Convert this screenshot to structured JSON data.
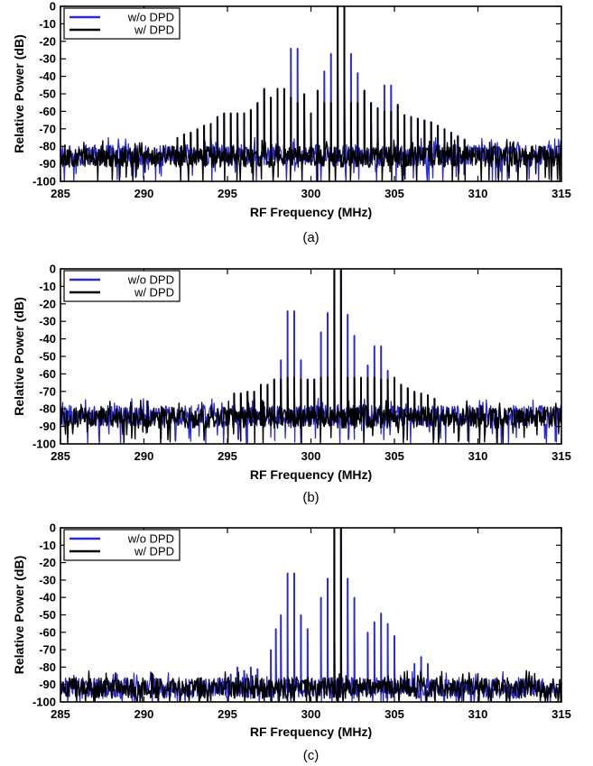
{
  "chart_data": [
    {
      "type": "line",
      "panel_label": "(a)",
      "xlabel": "RF Frequency (MHz)",
      "ylabel": "Relative Power (dB)",
      "xlim": [
        285,
        315
      ],
      "ylim": [
        -100,
        0
      ],
      "xticks": [
        285,
        290,
        295,
        300,
        305,
        310,
        315
      ],
      "yticks": [
        0,
        -10,
        -20,
        -30,
        -40,
        -50,
        -60,
        -70,
        -80,
        -90,
        -100
      ],
      "legend_position": "top-left",
      "colors": {
        "w/o DPD": "#2b2bd6",
        "w/ DPD": "#000000"
      },
      "series": [
        {
          "name": "w/o DPD",
          "noise_floor": -85,
          "tones": [
            [
              292.0,
              -75
            ],
            [
              292.4,
              -73
            ],
            [
              292.8,
              -72
            ],
            [
              293.2,
              -70
            ],
            [
              293.6,
              -68
            ],
            [
              294.0,
              -67
            ],
            [
              294.4,
              -63
            ],
            [
              294.8,
              -61
            ],
            [
              295.2,
              -61
            ],
            [
              295.6,
              -61
            ],
            [
              296.0,
              -61
            ],
            [
              296.4,
              -59
            ],
            [
              296.8,
              -55
            ],
            [
              297.2,
              -47
            ],
            [
              297.6,
              -52
            ],
            [
              298.0,
              -47
            ],
            [
              298.4,
              -47
            ],
            [
              298.8,
              -24
            ],
            [
              299.2,
              -24
            ],
            [
              299.6,
              -50
            ],
            [
              300.0,
              -61
            ],
            [
              300.4,
              -48
            ],
            [
              300.8,
              -37
            ],
            [
              301.2,
              -27
            ],
            [
              301.6,
              0
            ],
            [
              302.0,
              0
            ],
            [
              302.4,
              -27
            ],
            [
              302.8,
              -38
            ],
            [
              303.2,
              -48
            ],
            [
              303.6,
              -55
            ],
            [
              304.0,
              -58
            ],
            [
              304.4,
              -45
            ],
            [
              304.8,
              -45
            ],
            [
              305.2,
              -56
            ],
            [
              305.6,
              -62
            ],
            [
              306.0,
              -63
            ],
            [
              306.4,
              -64
            ],
            [
              306.8,
              -65
            ],
            [
              307.2,
              -66
            ],
            [
              307.6,
              -68
            ],
            [
              308.0,
              -70
            ],
            [
              308.4,
              -72
            ],
            [
              308.8,
              -74
            ],
            [
              309.2,
              -76
            ]
          ]
        },
        {
          "name": "w/ DPD",
          "noise_floor": -86,
          "tones": [
            [
              292.0,
              -75
            ],
            [
              292.4,
              -73
            ],
            [
              292.8,
              -72
            ],
            [
              293.2,
              -70
            ],
            [
              293.6,
              -68
            ],
            [
              294.0,
              -67
            ],
            [
              294.4,
              -63
            ],
            [
              294.8,
              -61
            ],
            [
              295.2,
              -61
            ],
            [
              295.6,
              -61
            ],
            [
              296.0,
              -61
            ],
            [
              296.4,
              -59
            ],
            [
              296.8,
              -55
            ],
            [
              297.2,
              -47
            ],
            [
              297.6,
              -52
            ],
            [
              298.0,
              -47
            ],
            [
              298.4,
              -47
            ],
            [
              298.8,
              -52
            ],
            [
              299.2,
              -55
            ],
            [
              299.6,
              -50
            ],
            [
              300.0,
              -61
            ],
            [
              300.4,
              -48
            ],
            [
              300.8,
              -55
            ],
            [
              301.2,
              -55
            ],
            [
              301.6,
              0
            ],
            [
              302.0,
              0
            ],
            [
              302.4,
              -55
            ],
            [
              302.8,
              -55
            ],
            [
              303.2,
              -48
            ],
            [
              303.6,
              -55
            ],
            [
              304.0,
              -58
            ],
            [
              304.4,
              -60
            ],
            [
              304.8,
              -60
            ],
            [
              305.2,
              -56
            ],
            [
              305.6,
              -62
            ],
            [
              306.0,
              -63
            ],
            [
              306.4,
              -64
            ],
            [
              306.8,
              -65
            ],
            [
              307.2,
              -66
            ],
            [
              307.6,
              -68
            ],
            [
              308.0,
              -70
            ],
            [
              308.4,
              -72
            ],
            [
              308.8,
              -74
            ],
            [
              309.2,
              -76
            ]
          ]
        }
      ]
    },
    {
      "type": "line",
      "panel_label": "(b)",
      "xlabel": "RF Frequency (MHz)",
      "ylabel": "Relative Power (dB)",
      "xlim": [
        285,
        315
      ],
      "ylim": [
        -100,
        0
      ],
      "xticks": [
        285,
        290,
        295,
        300,
        305,
        310,
        315
      ],
      "yticks": [
        0,
        -10,
        -20,
        -30,
        -40,
        -50,
        -60,
        -70,
        -80,
        -90,
        -100
      ],
      "legend_position": "top-left",
      "colors": {
        "w/o DPD": "#2b2bd6",
        "w/ DPD": "#000000"
      },
      "series": [
        {
          "name": "w/o DPD",
          "noise_floor": -84,
          "tones": [
            [
              295.4,
              -71
            ],
            [
              295.8,
              -71
            ],
            [
              296.2,
              -70
            ],
            [
              296.6,
              -70
            ],
            [
              297.0,
              -66
            ],
            [
              297.4,
              -66
            ],
            [
              297.8,
              -63
            ],
            [
              298.2,
              -52
            ],
            [
              298.6,
              -24
            ],
            [
              299.0,
              -24
            ],
            [
              299.4,
              -52
            ],
            [
              299.8,
              -63
            ],
            [
              300.2,
              -63
            ],
            [
              300.6,
              -36
            ],
            [
              301.0,
              -25
            ],
            [
              301.4,
              0
            ],
            [
              301.8,
              0
            ],
            [
              302.2,
              -26
            ],
            [
              302.6,
              -38
            ],
            [
              303.0,
              -62
            ],
            [
              303.4,
              -55
            ],
            [
              303.8,
              -44
            ],
            [
              304.2,
              -44
            ],
            [
              304.6,
              -58
            ],
            [
              305.0,
              -62
            ],
            [
              305.4,
              -66
            ],
            [
              305.8,
              -68
            ],
            [
              306.2,
              -70
            ],
            [
              306.6,
              -71
            ],
            [
              307.0,
              -72
            ],
            [
              307.4,
              -74
            ]
          ]
        },
        {
          "name": "w/ DPD",
          "noise_floor": -85,
          "tones": [
            [
              295.4,
              -71
            ],
            [
              295.8,
              -71
            ],
            [
              296.2,
              -70
            ],
            [
              296.6,
              -70
            ],
            [
              297.0,
              -66
            ],
            [
              297.4,
              -66
            ],
            [
              297.8,
              -63
            ],
            [
              298.2,
              -63
            ],
            [
              298.6,
              -62
            ],
            [
              299.0,
              -62
            ],
            [
              299.4,
              -63
            ],
            [
              299.8,
              -63
            ],
            [
              300.2,
              -63
            ],
            [
              300.6,
              -62
            ],
            [
              301.0,
              -62
            ],
            [
              301.4,
              0
            ],
            [
              301.8,
              0
            ],
            [
              302.2,
              -62
            ],
            [
              302.6,
              -62
            ],
            [
              303.0,
              -62
            ],
            [
              303.4,
              -62
            ],
            [
              303.8,
              -62
            ],
            [
              304.2,
              -63
            ],
            [
              304.6,
              -63
            ],
            [
              305.0,
              -62
            ],
            [
              305.4,
              -66
            ],
            [
              305.8,
              -68
            ],
            [
              306.2,
              -70
            ],
            [
              306.6,
              -71
            ],
            [
              307.0,
              -72
            ],
            [
              307.4,
              -74
            ]
          ]
        }
      ]
    },
    {
      "type": "line",
      "panel_label": "(c)",
      "xlabel": "RF Frequency (MHz)",
      "ylabel": "Relative Power (dB)",
      "xlim": [
        285,
        315
      ],
      "ylim": [
        -100,
        0
      ],
      "xticks": [
        285,
        290,
        295,
        300,
        305,
        310,
        315
      ],
      "yticks": [
        0,
        -10,
        -20,
        -30,
        -40,
        -50,
        -60,
        -70,
        -80,
        -90,
        -100
      ],
      "legend_position": "top-left",
      "colors": {
        "w/o DPD": "#2b2bd6",
        "w/ DPD": "#000000"
      },
      "series": [
        {
          "name": "w/o DPD",
          "noise_floor": -92,
          "tones": [
            [
              295.2,
              -84
            ],
            [
              295.6,
              -80
            ],
            [
              296.0,
              -82
            ],
            [
              296.4,
              -80
            ],
            [
              296.8,
              -81
            ],
            [
              297.6,
              -70
            ],
            [
              297.9,
              -58
            ],
            [
              298.2,
              -50
            ],
            [
              298.6,
              -26
            ],
            [
              299.0,
              -26
            ],
            [
              299.4,
              -50
            ],
            [
              299.8,
              -58
            ],
            [
              300.6,
              -40
            ],
            [
              301.0,
              -29
            ],
            [
              301.4,
              0
            ],
            [
              301.8,
              0
            ],
            [
              302.2,
              -29
            ],
            [
              302.6,
              -40
            ],
            [
              303.4,
              -60
            ],
            [
              303.8,
              -54
            ],
            [
              304.2,
              -49
            ],
            [
              304.6,
              -55
            ],
            [
              305.0,
              -62
            ],
            [
              306.2,
              -78
            ],
            [
              306.6,
              -74
            ],
            [
              307.0,
              -78
            ]
          ]
        },
        {
          "name": "w/ DPD",
          "noise_floor": -92,
          "tones": [
            [
              301.4,
              0
            ],
            [
              301.8,
              0
            ]
          ]
        }
      ]
    }
  ]
}
